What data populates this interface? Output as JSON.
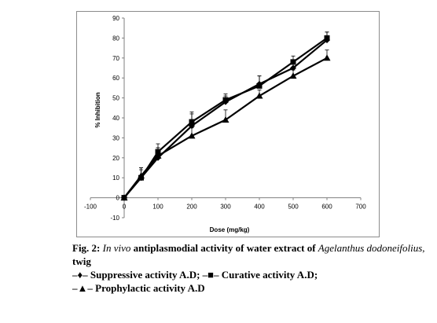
{
  "chart_data": {
    "type": "line",
    "xlabel": "Dose (mg/kg)",
    "ylabel": "% Inhibition",
    "xlim": [
      -100,
      700
    ],
    "ylim": [
      -10,
      90
    ],
    "x_ticks": [
      -100,
      0,
      100,
      200,
      300,
      400,
      500,
      600,
      700
    ],
    "y_ticks": [
      -10,
      0,
      10,
      20,
      30,
      40,
      50,
      60,
      70,
      80,
      90
    ],
    "x_tick_labels": [
      "-100",
      "0",
      "100",
      "200",
      "300",
      "400",
      "500",
      "600",
      "700"
    ],
    "y_tick_labels": [
      "-10",
      "0",
      "10",
      "20",
      "30",
      "40",
      "50",
      "60",
      "70",
      "80",
      "90"
    ],
    "grid": false,
    "x": [
      0,
      50,
      100,
      200,
      300,
      400,
      500,
      600
    ],
    "series": [
      {
        "name": "Suppressive activity A.D",
        "marker": "diamond",
        "values": [
          0,
          10,
          20,
          36,
          48,
          57,
          65,
          79
        ],
        "errors": [
          0,
          5,
          5,
          6,
          3,
          4,
          3,
          4
        ]
      },
      {
        "name": "Curative activity A.D",
        "marker": "square",
        "values": [
          0,
          10,
          23,
          38,
          49,
          56,
          68,
          80
        ],
        "errors": [
          0,
          4,
          4,
          5,
          3,
          5,
          3,
          3
        ]
      },
      {
        "name": "Prophylactic activity A.D",
        "marker": "triangle",
        "values": [
          0,
          11,
          21,
          31,
          39,
          51,
          61,
          70
        ],
        "errors": [
          0,
          4,
          4,
          4,
          5,
          3,
          3,
          4
        ]
      }
    ],
    "series_color": "#000000"
  },
  "caption": {
    "fig_label": "Fig. 2:",
    "italic_1": "In vivo",
    "text_1": " antiplasmodial activity of water extract of ",
    "italic_2": "Agelanthus dodoneifolius,",
    "text_2": " twig",
    "legend": [
      {
        "symbol": "–♦–",
        "text": " Suppressive activity A.D;"
      },
      {
        "symbol": "–■–",
        "text": " Curative activity A.D;"
      },
      {
        "symbol": "–▲–",
        "text": " Prophylactic activity A.D"
      }
    ]
  }
}
